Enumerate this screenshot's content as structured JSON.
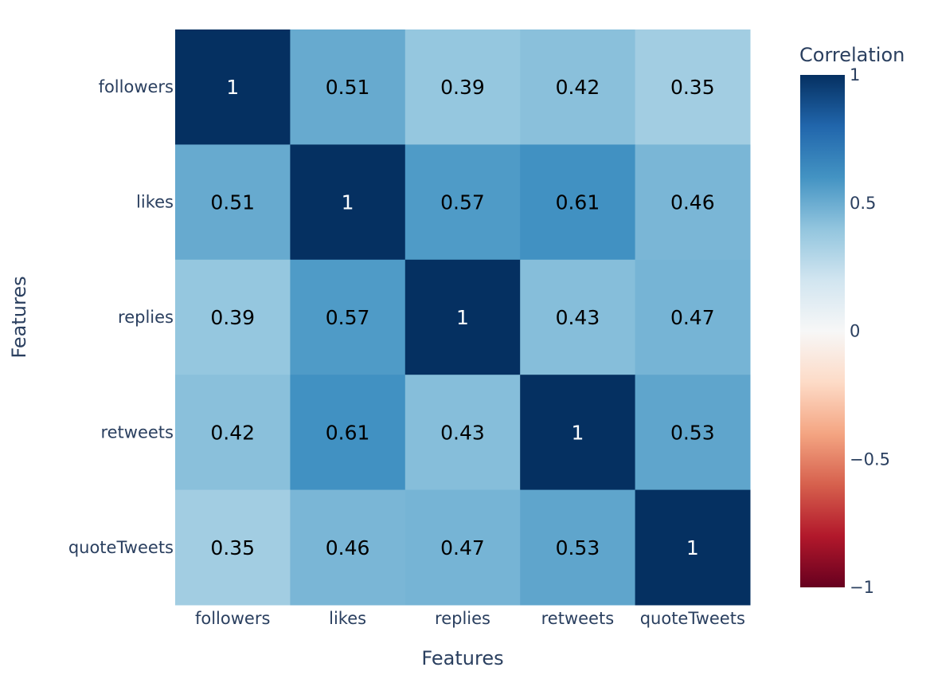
{
  "chart_data": {
    "type": "heatmap",
    "title": "",
    "xlabel": "Features",
    "ylabel": "Features",
    "x_categories": [
      "followers",
      "likes",
      "replies",
      "retweets",
      "quoteTweets"
    ],
    "y_categories": [
      "followers",
      "likes",
      "replies",
      "retweets",
      "quoteTweets"
    ],
    "z": [
      [
        1,
        0.51,
        0.39,
        0.42,
        0.35
      ],
      [
        0.51,
        1,
        0.57,
        0.61,
        0.46
      ],
      [
        0.39,
        0.57,
        1,
        0.43,
        0.47
      ],
      [
        0.42,
        0.61,
        0.43,
        1,
        0.53
      ],
      [
        0.35,
        0.46,
        0.47,
        0.53,
        1
      ]
    ],
    "z_labels": [
      [
        "1",
        "0.51",
        "0.39",
        "0.42",
        "0.35"
      ],
      [
        "0.51",
        "1",
        "0.57",
        "0.61",
        "0.46"
      ],
      [
        "0.39",
        "0.57",
        "1",
        "0.43",
        "0.47"
      ],
      [
        "0.42",
        "0.61",
        "0.43",
        "1",
        "0.53"
      ],
      [
        "0.35",
        "0.46",
        "0.47",
        "0.53",
        "1"
      ]
    ],
    "zlim": [
      -1,
      1
    ],
    "colorbar": {
      "title": "Correlation",
      "tickvals": [
        1,
        0.5,
        0,
        -0.5,
        -1
      ],
      "ticktext": [
        "1",
        "0.5",
        "0",
        "−0.5",
        "−1"
      ]
    },
    "colorscale": [
      [
        0,
        "#67001f"
      ],
      [
        0.1,
        "#b2182b"
      ],
      [
        0.2,
        "#d6604d"
      ],
      [
        0.3,
        "#f4a582"
      ],
      [
        0.4,
        "#fddbc7"
      ],
      [
        0.5,
        "#f7f7f7"
      ],
      [
        0.6,
        "#d1e5f0"
      ],
      [
        0.7,
        "#92c5de"
      ],
      [
        0.8,
        "#4393c3"
      ],
      [
        0.9,
        "#2166ac"
      ],
      [
        1,
        "#053061"
      ]
    ],
    "grid": false,
    "legend_position": "right"
  },
  "colors": {
    "text": "#2a3f5f",
    "cell_text_dark": "#000000",
    "cell_text_light": "#ffffff"
  }
}
